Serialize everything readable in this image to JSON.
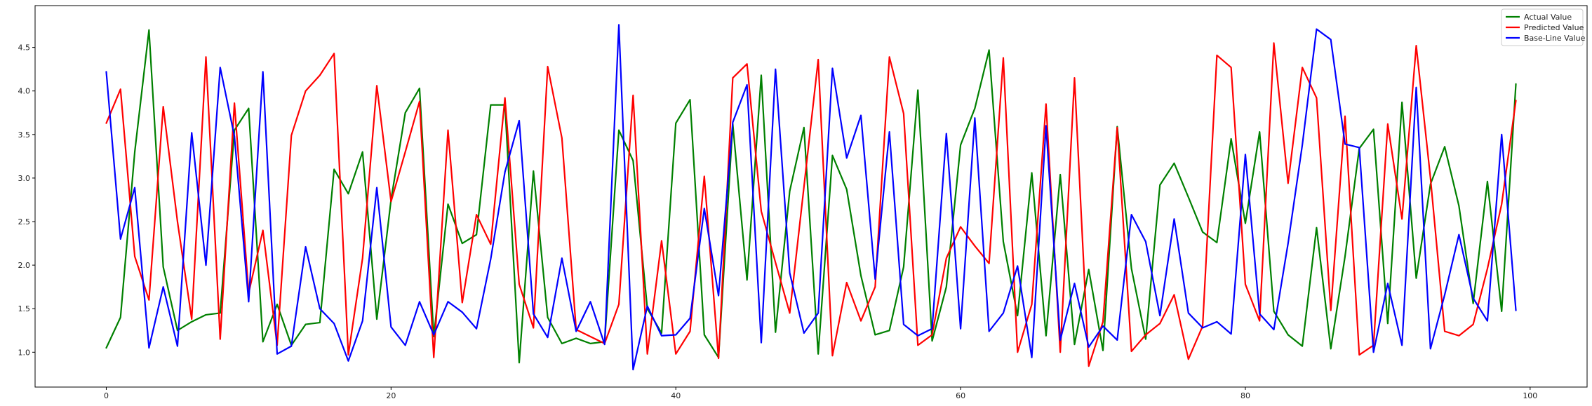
{
  "chart_data": {
    "type": "line",
    "title": "",
    "xlabel": "",
    "ylabel": "",
    "xlim": [
      -5,
      104
    ],
    "ylim": [
      0.6,
      4.98
    ],
    "grid": false,
    "legend_placement": "top-right",
    "x_ticks": [
      0,
      20,
      40,
      60,
      80,
      100
    ],
    "y_ticks": [
      1.0,
      1.5,
      2.0,
      2.5,
      3.0,
      3.5,
      4.0,
      4.5
    ],
    "x_tick_labels": [
      "0",
      "20",
      "40",
      "60",
      "80",
      "100"
    ],
    "y_tick_labels": [
      "1.0",
      "1.5",
      "2.0",
      "2.5",
      "3.0",
      "3.5",
      "4.0",
      "4.5"
    ],
    "series": [
      {
        "name": "Actual Value",
        "color": "#008000",
        "values": [
          1.05,
          1.4,
          3.3,
          4.7,
          1.98,
          1.25,
          1.35,
          1.43,
          1.45,
          3.55,
          3.8,
          1.12,
          1.55,
          1.08,
          1.32,
          1.34,
          3.1,
          2.82,
          3.3,
          1.38,
          2.75,
          3.75,
          4.03,
          1.18,
          2.7,
          2.25,
          2.35,
          3.84,
          3.84,
          0.88,
          3.08,
          1.4,
          1.1,
          1.16,
          1.1,
          1.12,
          3.55,
          3.2,
          1.5,
          1.22,
          3.63,
          3.9,
          1.2,
          0.94,
          3.62,
          1.83,
          4.18,
          1.23,
          2.85,
          3.58,
          0.98,
          3.26,
          2.87,
          1.88,
          1.2,
          1.25,
          1.98,
          4.01,
          1.13,
          1.75,
          3.38,
          3.8,
          4.47,
          2.27,
          1.42,
          3.06,
          1.19,
          3.04,
          1.09,
          1.95,
          1.02,
          3.59,
          1.96,
          1.15,
          2.92,
          3.17,
          2.78,
          2.38,
          2.26,
          3.45,
          2.48,
          3.53,
          1.47,
          1.2,
          1.07,
          2.43,
          1.04,
          2.1,
          3.34,
          3.56,
          1.33,
          3.87,
          1.85,
          2.93,
          3.36,
          2.68,
          1.56,
          2.96,
          1.47,
          4.08
        ]
      },
      {
        "name": "Predicted Value",
        "color": "#ff0000",
        "values": [
          3.63,
          4.02,
          2.1,
          1.6,
          3.82,
          2.5,
          1.38,
          4.39,
          1.15,
          3.86,
          1.68,
          2.4,
          1.08,
          3.49,
          4.0,
          4.18,
          4.43,
          0.97,
          2.08,
          4.06,
          2.73,
          3.3,
          3.88,
          0.94,
          3.55,
          1.57,
          2.58,
          2.24,
          3.92,
          1.78,
          1.28,
          4.28,
          3.46,
          1.26,
          1.18,
          1.1,
          1.55,
          3.95,
          0.98,
          2.28,
          0.98,
          1.24,
          3.02,
          0.93,
          4.15,
          4.31,
          2.62,
          2.03,
          1.45,
          2.9,
          4.36,
          0.96,
          1.8,
          1.36,
          1.75,
          4.39,
          3.74,
          1.08,
          1.2,
          2.08,
          2.44,
          2.22,
          2.02,
          4.38,
          1.0,
          1.55,
          3.85,
          1.0,
          4.15,
          0.84,
          1.35,
          3.58,
          1.01,
          1.2,
          1.33,
          1.66,
          0.92,
          1.3,
          4.41,
          4.27,
          1.78,
          1.36,
          4.55,
          2.94,
          4.27,
          3.92,
          1.48,
          3.71,
          0.97,
          1.08,
          3.62,
          2.53,
          4.52,
          3.0,
          1.24,
          1.19,
          1.32,
          1.96,
          2.7,
          3.89
        ]
      },
      {
        "name": "Base-Line Value",
        "color": "#0000ff",
        "values": [
          4.22,
          2.3,
          2.89,
          1.05,
          1.75,
          1.07,
          3.52,
          2.0,
          4.27,
          3.48,
          1.58,
          4.22,
          0.98,
          1.07,
          2.21,
          1.5,
          1.33,
          0.9,
          1.36,
          2.89,
          1.29,
          1.08,
          1.58,
          1.2,
          1.58,
          1.46,
          1.27,
          2.07,
          3.07,
          3.66,
          1.44,
          1.17,
          2.08,
          1.24,
          1.58,
          1.09,
          4.76,
          0.8,
          1.53,
          1.19,
          1.2,
          1.39,
          2.65,
          1.65,
          3.64,
          4.07,
          1.11,
          4.25,
          1.91,
          1.22,
          1.45,
          4.26,
          3.23,
          3.72,
          1.84,
          3.53,
          1.32,
          1.19,
          1.27,
          3.51,
          1.27,
          3.69,
          1.24,
          1.45,
          1.99,
          0.94,
          3.6,
          1.14,
          1.79,
          1.06,
          1.3,
          1.14,
          2.58,
          2.27,
          1.42,
          2.53,
          1.45,
          1.28,
          1.35,
          1.21,
          3.27,
          1.44,
          1.26,
          2.25,
          3.38,
          4.71,
          4.59,
          3.39,
          3.35,
          1.0,
          1.79,
          1.08,
          4.04,
          1.04,
          1.66,
          2.35,
          1.62,
          1.36,
          3.5,
          1.48
        ]
      }
    ]
  }
}
